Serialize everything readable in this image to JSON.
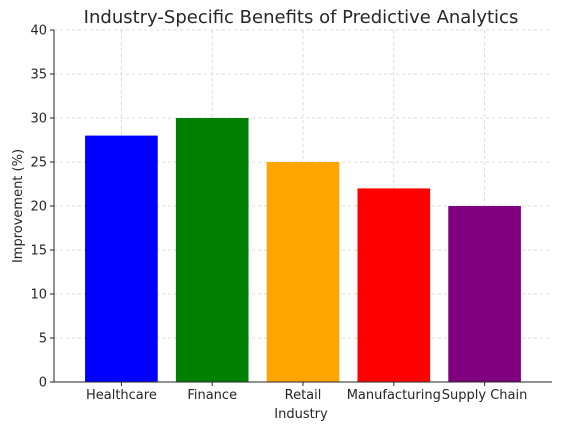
{
  "chart_data": {
    "type": "bar",
    "title": "Industry-Specific Benefits of Predictive Analytics",
    "xlabel": "Industry",
    "ylabel": "Improvement (%)",
    "categories": [
      "Healthcare",
      "Finance",
      "Retail",
      "Manufacturing",
      "Supply Chain"
    ],
    "values": [
      28,
      30,
      25,
      22,
      20
    ],
    "colors": [
      "#0000ff",
      "#008000",
      "#ffa500",
      "#ff0000",
      "#800080"
    ],
    "ylim": [
      0,
      40
    ],
    "yticks": [
      0,
      5,
      10,
      15,
      20,
      25,
      30,
      35,
      40
    ],
    "grid": true
  }
}
